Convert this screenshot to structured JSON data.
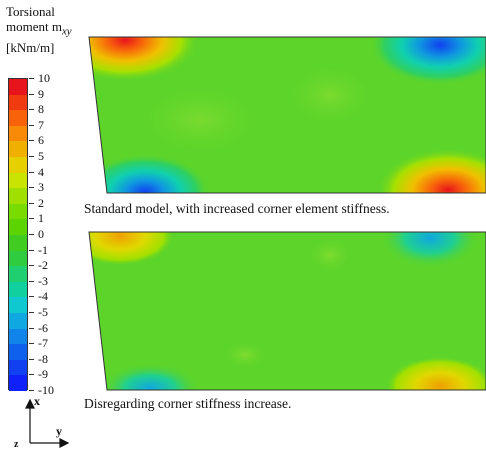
{
  "legend": {
    "title_line1": "Torsional",
    "title_line2_main": "moment m",
    "title_line2_sub": "xy",
    "title_line3": "[kNm/m]",
    "ticks": [
      "10",
      "9",
      "8",
      "7",
      "6",
      "5",
      "4",
      "3",
      "2",
      "1",
      "0",
      "-1",
      "-2",
      "-3",
      "-4",
      "-5",
      "-6",
      "-7",
      "-8",
      "-9",
      "-10"
    ],
    "colors": [
      "#e8141c",
      "#f03a10",
      "#f8620a",
      "#f88a08",
      "#f0b000",
      "#e6d000",
      "#c8e400",
      "#a0e000",
      "#78dc00",
      "#5cd400",
      "#40cc20",
      "#30cc40",
      "#20d070",
      "#10d0a0",
      "#10c8d0",
      "#10a8e0",
      "#1084e8",
      "#1060ee",
      "#1040f0",
      "#1020f8"
    ]
  },
  "panels": [
    {
      "caption": "Standard model, with increased corner element stiffness."
    },
    {
      "caption": "Disregarding corner stiffness increase."
    }
  ],
  "axes": {
    "x": "x",
    "y": "y",
    "z": "z"
  },
  "colors": {
    "base_green": "#5cd42a",
    "red": "#e8141c",
    "blue": "#1040f0"
  }
}
